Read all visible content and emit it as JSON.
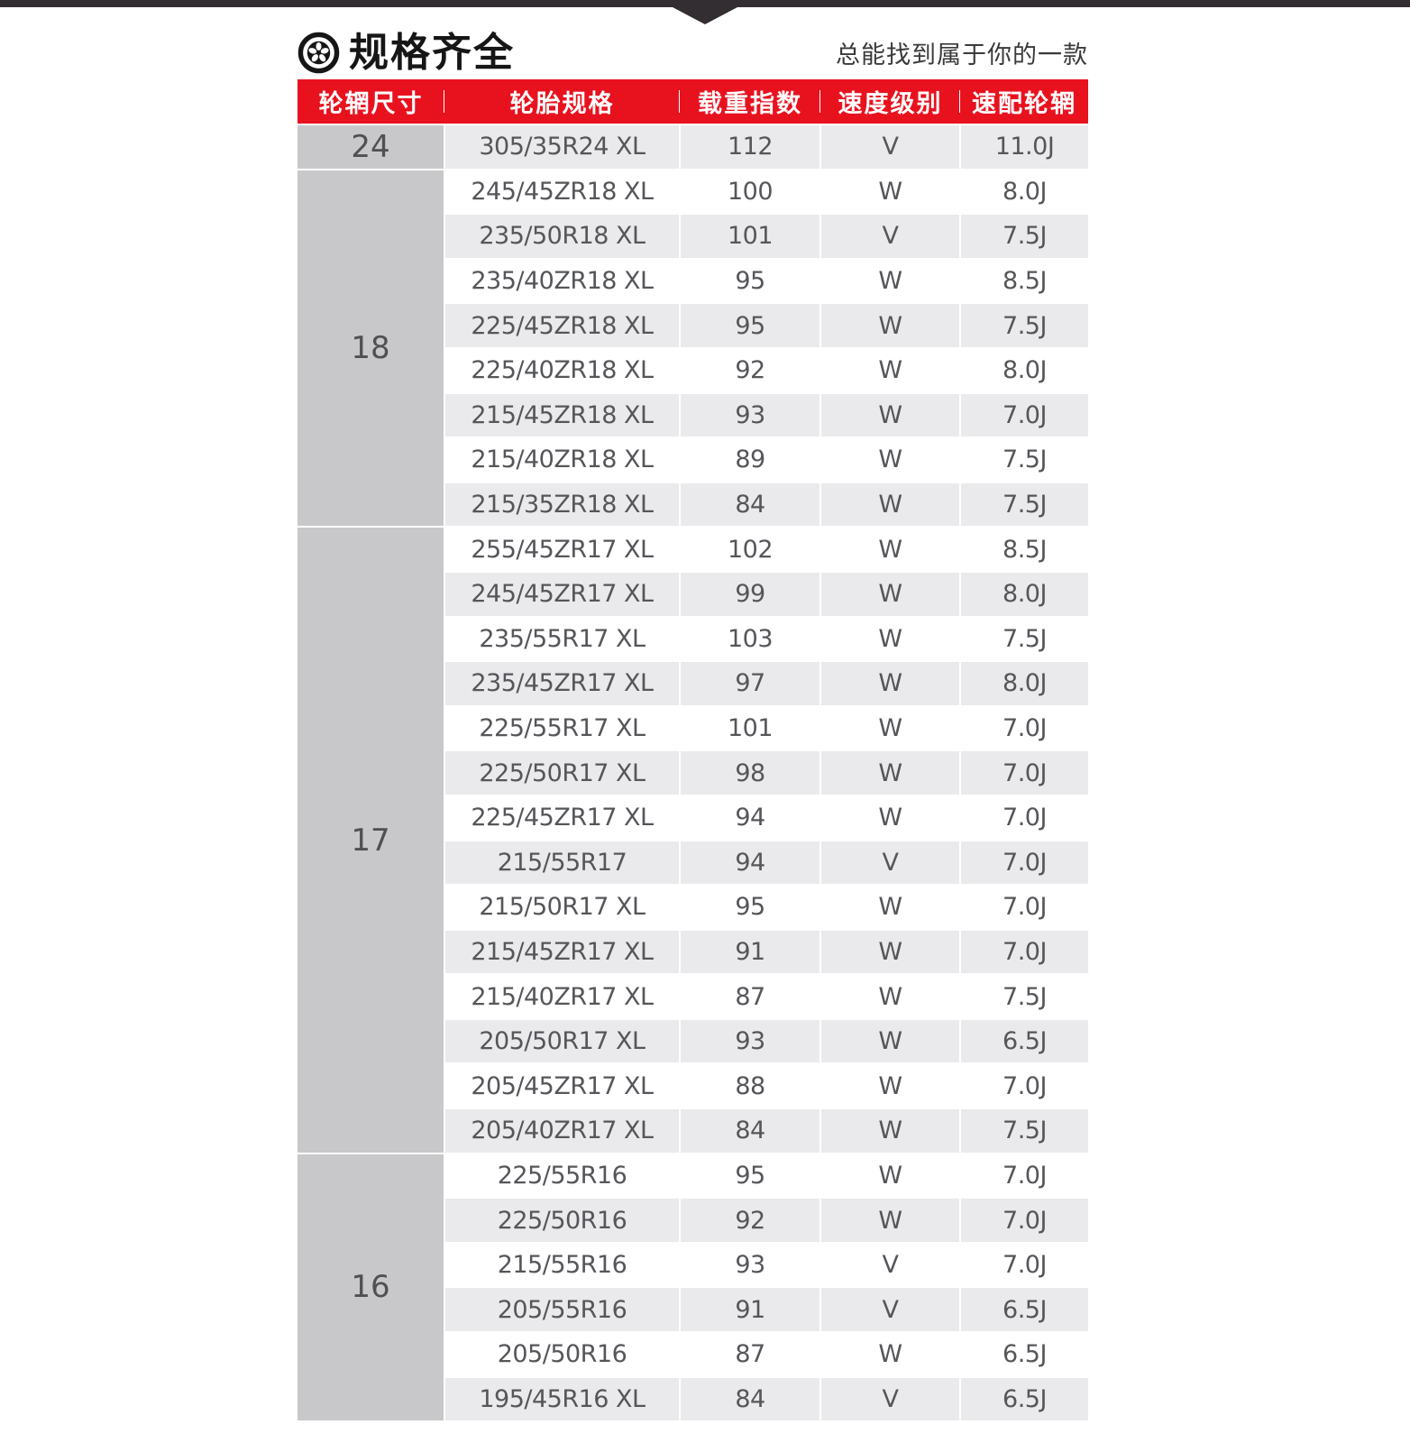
{
  "header": {
    "title": "规格齐全",
    "subtitle": "总能找到属于你的一款",
    "icon": "wheel-icon"
  },
  "table": {
    "columns": [
      "轮辋尺寸",
      "轮胎规格",
      "载重指数",
      "速度级别",
      "速配轮辋"
    ],
    "groups": [
      {
        "rim": "24",
        "rows": [
          [
            "305/35R24 XL",
            "112",
            "V",
            "11.0J"
          ]
        ]
      },
      {
        "rim": "18",
        "rows": [
          [
            "245/45ZR18 XL",
            "100",
            "W",
            "8.0J"
          ],
          [
            "235/50R18 XL",
            "101",
            "V",
            "7.5J"
          ],
          [
            "235/40ZR18 XL",
            "95",
            "W",
            "8.5J"
          ],
          [
            "225/45ZR18 XL",
            "95",
            "W",
            "7.5J"
          ],
          [
            "225/40ZR18 XL",
            "92",
            "W",
            "8.0J"
          ],
          [
            "215/45ZR18 XL",
            "93",
            "W",
            "7.0J"
          ],
          [
            "215/40ZR18 XL",
            "89",
            "W",
            "7.5J"
          ],
          [
            "215/35ZR18 XL",
            "84",
            "W",
            "7.5J"
          ]
        ]
      },
      {
        "rim": "17",
        "rows": [
          [
            "255/45ZR17 XL",
            "102",
            "W",
            "8.5J"
          ],
          [
            "245/45ZR17 XL",
            "99",
            "W",
            "8.0J"
          ],
          [
            "235/55R17 XL",
            "103",
            "W",
            "7.5J"
          ],
          [
            "235/45ZR17 XL",
            "97",
            "W",
            "8.0J"
          ],
          [
            "225/55R17 XL",
            "101",
            "W",
            "7.0J"
          ],
          [
            "225/50R17 XL",
            "98",
            "W",
            "7.0J"
          ],
          [
            "225/45ZR17 XL",
            "94",
            "W",
            "7.0J"
          ],
          [
            "215/55R17",
            "94",
            "V",
            "7.0J"
          ],
          [
            "215/50R17 XL",
            "95",
            "W",
            "7.0J"
          ],
          [
            "215/45ZR17 XL",
            "91",
            "W",
            "7.0J"
          ],
          [
            "215/40ZR17 XL",
            "87",
            "W",
            "7.5J"
          ],
          [
            "205/50R17 XL",
            "93",
            "W",
            "6.5J"
          ],
          [
            "205/45ZR17 XL",
            "88",
            "W",
            "7.0J"
          ],
          [
            "205/40ZR17 XL",
            "84",
            "W",
            "7.5J"
          ]
        ]
      },
      {
        "rim": "16",
        "rows": [
          [
            "225/55R16",
            "95",
            "W",
            "7.0J"
          ],
          [
            "225/50R16",
            "92",
            "W",
            "7.0J"
          ],
          [
            "215/55R16",
            "93",
            "V",
            "7.0J"
          ],
          [
            "205/55R16",
            "91",
            "V",
            "6.5J"
          ],
          [
            "205/50R16",
            "87",
            "W",
            "6.5J"
          ],
          [
            "195/45R16 XL",
            "84",
            "V",
            "6.5J"
          ]
        ]
      }
    ]
  },
  "colors": {
    "accent_red": "#e8121f",
    "top_bar_dark": "#322e31",
    "rim_cell_gray": "#c8c8ca",
    "row_shade_gray": "#eaeaec",
    "cell_text": "#55565a",
    "title_text": "#161616"
  }
}
